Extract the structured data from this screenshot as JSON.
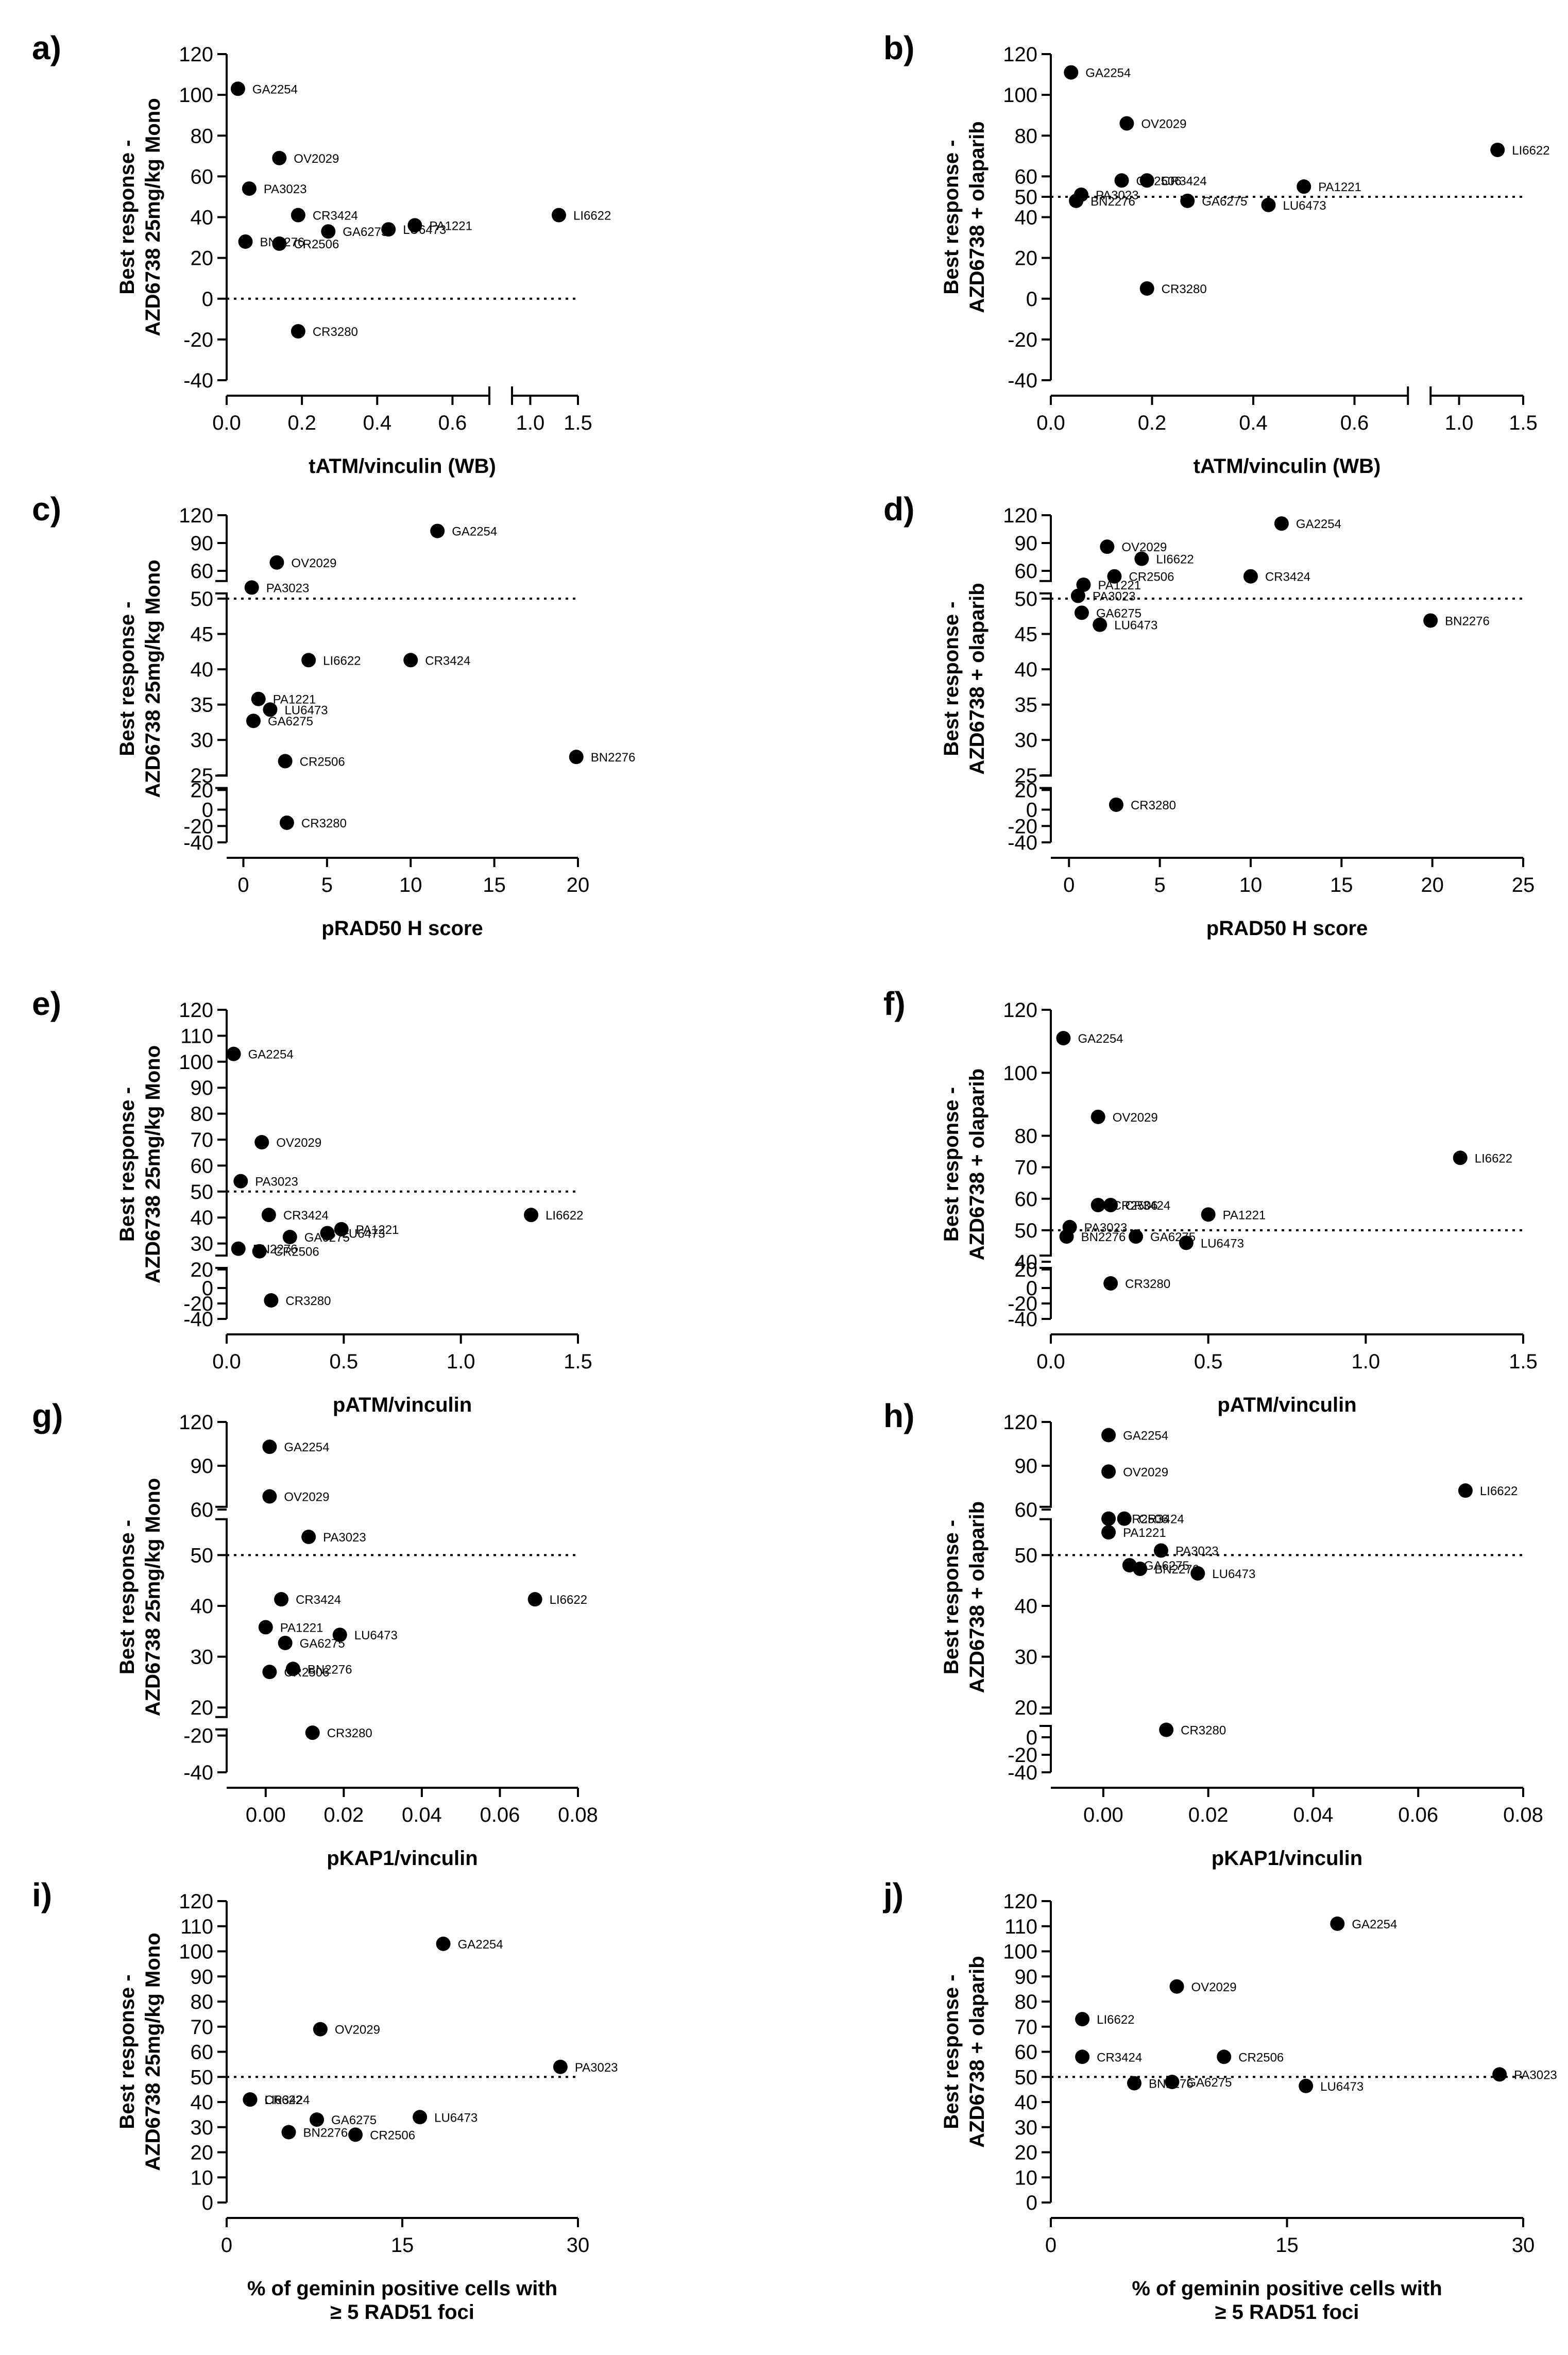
{
  "panels": [
    {
      "id": "a",
      "label": "a)",
      "xlabel": "tATM/vinculin (WB)",
      "ylabel": [
        "Best response -",
        "AZD6738 25mg/kg Mono"
      ]
    },
    {
      "id": "b",
      "label": "b)",
      "xlabel": "tATM/vinculin (WB)",
      "ylabel": [
        "Best response -",
        "AZD6738 + olaparib"
      ]
    },
    {
      "id": "c",
      "label": "c)",
      "xlabel": "pRAD50 H score",
      "ylabel": [
        "Best response -",
        "AZD6738 25mg/kg Mono"
      ]
    },
    {
      "id": "d",
      "label": "d)",
      "xlabel": "pRAD50 H score",
      "ylabel": [
        "Best response -",
        "AZD6738 + olaparib"
      ]
    },
    {
      "id": "e",
      "label": "e)",
      "xlabel": "pATM/vinculin",
      "ylabel": [
        "Best response -",
        "AZD6738 25mg/kg Mono"
      ]
    },
    {
      "id": "f",
      "label": "f)",
      "xlabel": "pATM/vinculin",
      "ylabel": [
        "Best response -",
        "AZD6738 + olaparib"
      ]
    },
    {
      "id": "g",
      "label": "g)",
      "xlabel": "pKAP1/vinculin",
      "ylabel": [
        "Best response -",
        "AZD6738 25mg/kg Mono"
      ]
    },
    {
      "id": "h",
      "label": "h)",
      "xlabel": "pKAP1/vinculin",
      "ylabel": [
        "Best response -",
        "AZD6738 + olaparib"
      ]
    },
    {
      "id": "i",
      "label": "i)",
      "xlabel": [
        "% of geminin positive cells with",
        "≥ 5 RAD51 foci"
      ],
      "ylabel": [
        "Best response -",
        "AZD6738 25mg/kg Mono"
      ]
    },
    {
      "id": "j",
      "label": "j)",
      "xlabel": [
        "% of geminin positive cells with",
        "≥ 5 RAD51 foci"
      ],
      "ylabel": [
        "Best response -",
        "AZD6738 + olaparib"
      ]
    }
  ],
  "chart_data": [
    {
      "panel": "a",
      "type": "scatter",
      "xlabel": "tATM/vinculin (WB)",
      "ylabel": "Best response - AZD6738 25mg/kg Mono",
      "xticks": [
        "0.0",
        "0.2",
        "0.4",
        "0.6",
        "1.0",
        "1.5"
      ],
      "yticks": [
        "-40",
        "-20",
        "0",
        "20",
        "40",
        "60",
        "80",
        "100",
        "120"
      ],
      "x_break": true,
      "y_break": false,
      "reference_line": 0,
      "points": [
        {
          "name": "GA2254",
          "x": 0.03,
          "y": 103
        },
        {
          "name": "OV2029",
          "x": 0.14,
          "y": 69
        },
        {
          "name": "PA3023",
          "x": 0.06,
          "y": 54
        },
        {
          "name": "CR3424",
          "x": 0.19,
          "y": 41
        },
        {
          "name": "LU6473",
          "x": 0.43,
          "y": 34
        },
        {
          "name": "PA1221",
          "x": 0.5,
          "y": 36
        },
        {
          "name": "LI6622",
          "x": 1.3,
          "y": 41
        },
        {
          "name": "BN2276",
          "x": 0.05,
          "y": 28
        },
        {
          "name": "CR2506",
          "x": 0.14,
          "y": 27
        },
        {
          "name": "GA6275",
          "x": 0.27,
          "y": 33
        },
        {
          "name": "CR3280",
          "x": 0.19,
          "y": -16
        }
      ]
    },
    {
      "panel": "b",
      "type": "scatter",
      "xlabel": "tATM/vinculin (WB)",
      "ylabel": "Best response - AZD6738 + olaparib",
      "xticks": [
        "0.0",
        "0.2",
        "0.4",
        "0.6",
        "1.0",
        "1.5"
      ],
      "yticks": [
        "-40",
        "-20",
        "0",
        "20",
        "40",
        "50",
        "60",
        "80",
        "100",
        "120"
      ],
      "x_break": true,
      "y_break": false,
      "reference_line": 50,
      "points": [
        {
          "name": "GA2254",
          "x": 0.04,
          "y": 111
        },
        {
          "name": "OV2029",
          "x": 0.15,
          "y": 86
        },
        {
          "name": "CR2506",
          "x": 0.14,
          "y": 58
        },
        {
          "name": "CR3424",
          "x": 0.19,
          "y": 58
        },
        {
          "name": "PA3023",
          "x": 0.06,
          "y": 51
        },
        {
          "name": "BN2276",
          "x": 0.05,
          "y": 48
        },
        {
          "name": "GA6275",
          "x": 0.27,
          "y": 48
        },
        {
          "name": "LU6473",
          "x": 0.43,
          "y": 46
        },
        {
          "name": "PA1221",
          "x": 0.5,
          "y": 55
        },
        {
          "name": "LI6622",
          "x": 1.3,
          "y": 73
        },
        {
          "name": "CR3280",
          "x": 0.19,
          "y": 5
        }
      ]
    },
    {
      "panel": "c",
      "type": "scatter",
      "xlabel": "pRAD50 H score",
      "ylabel": "Best response - AZD6738 25mg/kg Mono",
      "xticks": [
        "0",
        "5",
        "10",
        "15",
        "20"
      ],
      "yticks": [
        "-40",
        "-20",
        "0",
        "20",
        "25",
        "30",
        "35",
        "40",
        "45",
        "50",
        "60",
        "90",
        "120"
      ],
      "x_break": false,
      "y_break": true,
      "reference_line": 50,
      "points": [
        {
          "name": "GA2254",
          "x": 11.6,
          "y": 103
        },
        {
          "name": "OV2029",
          "x": 2,
          "y": 69
        },
        {
          "name": "PA3023",
          "x": 0.5,
          "y": 54
        },
        {
          "name": "LI6622",
          "x": 3.9,
          "y": 41.3
        },
        {
          "name": "CR3424",
          "x": 10,
          "y": 41.3
        },
        {
          "name": "PA1221",
          "x": 0.9,
          "y": 35.8
        },
        {
          "name": "LU6473",
          "x": 1.6,
          "y": 34.3
        },
        {
          "name": "GA6275",
          "x": 0.6,
          "y": 32.7
        },
        {
          "name": "CR2506",
          "x": 2.5,
          "y": 27
        },
        {
          "name": "BN2276",
          "x": 19.9,
          "y": 27.6
        },
        {
          "name": "CR3280",
          "x": 2.6,
          "y": -16
        }
      ]
    },
    {
      "panel": "d",
      "type": "scatter",
      "xlabel": "pRAD50 H score",
      "ylabel": "Best response - AZD6738 + olaparib",
      "xticks": [
        "0",
        "5",
        "10",
        "15",
        "20",
        "25"
      ],
      "yticks": [
        "-40",
        "-20",
        "0",
        "20",
        "25",
        "30",
        "35",
        "40",
        "45",
        "50",
        "60",
        "90",
        "120"
      ],
      "x_break": false,
      "y_break": true,
      "reference_line": 50,
      "points": [
        {
          "name": "GA2254",
          "x": 11.7,
          "y": 111
        },
        {
          "name": "OV2029",
          "x": 2.1,
          "y": 86
        },
        {
          "name": "PA3023",
          "x": 0.5,
          "y": 51
        },
        {
          "name": "PA1221",
          "x": 0.8,
          "y": 55
        },
        {
          "name": "LI6622",
          "x": 4,
          "y": 73
        },
        {
          "name": "CR2506",
          "x": 2.5,
          "y": 58
        },
        {
          "name": "CR3424",
          "x": 10,
          "y": 58
        },
        {
          "name": "GA6275",
          "x": 0.7,
          "y": 48
        },
        {
          "name": "LU6473",
          "x": 1.7,
          "y": 46.3
        },
        {
          "name": "BN2276",
          "x": 19.9,
          "y": 46.9
        },
        {
          "name": "CR3280",
          "x": 2.6,
          "y": 5
        }
      ]
    },
    {
      "panel": "e",
      "type": "scatter",
      "xlabel": "pATM/vinculin",
      "ylabel": "Best response - AZD6738 25mg/kg Mono",
      "xticks": [
        "0.0",
        "0.5",
        "1.0",
        "1.5"
      ],
      "yticks": [
        "-40",
        "-20",
        "0",
        "20",
        "30",
        "40",
        "50",
        "60",
        "70",
        "80",
        "90",
        "100",
        "110",
        "120"
      ],
      "x_break": false,
      "y_break": true,
      "reference_line": 50,
      "points": [
        {
          "name": "GA2254",
          "x": 0.03,
          "y": 103
        },
        {
          "name": "OV2029",
          "x": 0.15,
          "y": 69
        },
        {
          "name": "PA3023",
          "x": 0.06,
          "y": 54
        },
        {
          "name": "CR3424",
          "x": 0.18,
          "y": 41
        },
        {
          "name": "LU6473",
          "x": 0.43,
          "y": 34
        },
        {
          "name": "PA1221",
          "x": 0.49,
          "y": 35.5
        },
        {
          "name": "LI6622",
          "x": 1.3,
          "y": 41
        },
        {
          "name": "BN2276",
          "x": 0.05,
          "y": 28
        },
        {
          "name": "CR2506",
          "x": 0.14,
          "y": 27
        },
        {
          "name": "GA6275",
          "x": 0.27,
          "y": 32.5
        },
        {
          "name": "CR3280",
          "x": 0.19,
          "y": -16
        }
      ]
    },
    {
      "panel": "f",
      "type": "scatter",
      "xlabel": "pATM/vinculin",
      "ylabel": "Best response - AZD6738 + olaparib",
      "xticks": [
        "0.0",
        "0.5",
        "1.0",
        "1.5"
      ],
      "yticks": [
        "-40",
        "-20",
        "0",
        "20",
        "40",
        "50",
        "60",
        "70",
        "80",
        "100",
        "120"
      ],
      "x_break": false,
      "y_break": true,
      "reference_line": 50,
      "points": [
        {
          "name": "GA2254",
          "x": 0.04,
          "y": 111
        },
        {
          "name": "OV2029",
          "x": 0.15,
          "y": 86
        },
        {
          "name": "CR2506",
          "x": 0.15,
          "y": 58
        },
        {
          "name": "CR3424",
          "x": 0.19,
          "y": 58
        },
        {
          "name": "PA3023",
          "x": 0.06,
          "y": 51
        },
        {
          "name": "BN2276",
          "x": 0.05,
          "y": 48
        },
        {
          "name": "GA6275",
          "x": 0.27,
          "y": 48
        },
        {
          "name": "LU6473",
          "x": 0.43,
          "y": 46
        },
        {
          "name": "PA1221",
          "x": 0.5,
          "y": 55
        },
        {
          "name": "LI6622",
          "x": 1.3,
          "y": 73
        },
        {
          "name": "CR3280",
          "x": 0.19,
          "y": 5
        }
      ]
    },
    {
      "panel": "g",
      "type": "scatter",
      "xlabel": "pKAP1/vinculin",
      "ylabel": "Best response - AZD6738 25mg/kg Mono",
      "xticks": [
        "0.00",
        "0.02",
        "0.04",
        "0.06",
        "0.08"
      ],
      "yticks": [
        "-40",
        "-20",
        "20",
        "30",
        "40",
        "50",
        "60",
        "90",
        "120"
      ],
      "x_break": false,
      "y_break": true,
      "reference_line": 50,
      "points": [
        {
          "name": "GA2254",
          "x": 0.001,
          "y": 103
        },
        {
          "name": "OV2029",
          "x": 0.001,
          "y": 69
        },
        {
          "name": "PA3023",
          "x": 0.011,
          "y": 54
        },
        {
          "name": "CR3424",
          "x": 0.004,
          "y": 41.3
        },
        {
          "name": "LI6622",
          "x": 0.069,
          "y": 41.3
        },
        {
          "name": "PA1221",
          "x": 0.0,
          "y": 35.8
        },
        {
          "name": "LU6473",
          "x": 0.019,
          "y": 34.3
        },
        {
          "name": "GA6275",
          "x": 0.005,
          "y": 32.7
        },
        {
          "name": "BN2276",
          "x": 0.007,
          "y": 27.6
        },
        {
          "name": "CR2506",
          "x": 0.001,
          "y": 27
        },
        {
          "name": "CR3280",
          "x": 0.012,
          "y": -16
        }
      ]
    },
    {
      "panel": "h",
      "type": "scatter",
      "xlabel": "pKAP1/vinculin",
      "ylabel": "Best response - AZD6738 + olaparib",
      "xticks": [
        "0.00",
        "0.02",
        "0.04",
        "0.06",
        "0.08"
      ],
      "yticks": [
        "-40",
        "-20",
        "0",
        "20",
        "30",
        "40",
        "50",
        "60",
        "90",
        "120"
      ],
      "x_break": false,
      "y_break": true,
      "reference_line": 50,
      "points": [
        {
          "name": "GA2254",
          "x": 0.001,
          "y": 111
        },
        {
          "name": "OV2029",
          "x": 0.001,
          "y": 86
        },
        {
          "name": "LI6622",
          "x": 0.069,
          "y": 73
        },
        {
          "name": "CR2506",
          "x": 0.001,
          "y": 58
        },
        {
          "name": "CR3424",
          "x": 0.004,
          "y": 58
        },
        {
          "name": "PA1221",
          "x": 0.001,
          "y": 55
        },
        {
          "name": "PA3023",
          "x": 0.011,
          "y": 51
        },
        {
          "name": "GA6275",
          "x": 0.005,
          "y": 48
        },
        {
          "name": "BN2276",
          "x": 0.007,
          "y": 47.3
        },
        {
          "name": "LU6473",
          "x": 0.018,
          "y": 46.4
        },
        {
          "name": "CR3280",
          "x": 0.012,
          "y": 5
        }
      ]
    },
    {
      "panel": "i",
      "type": "scatter",
      "xlabel": "% of geminin positive cells with ≥ 5 RAD51 foci",
      "ylabel": "Best response - AZD6738 25mg/kg Mono",
      "xticks": [
        "0",
        "15",
        "30"
      ],
      "yticks": [
        "0",
        "10",
        "20",
        "30",
        "40",
        "50",
        "60",
        "70",
        "80",
        "90",
        "100",
        "110",
        "120"
      ],
      "x_break": false,
      "y_break": false,
      "reference_line": 50,
      "points": [
        {
          "name": "GA2254",
          "x": 18.5,
          "y": 103
        },
        {
          "name": "OV2029",
          "x": 8,
          "y": 69
        },
        {
          "name": "PA3023",
          "x": 28.5,
          "y": 54
        },
        {
          "name": "LI6622",
          "x": 2,
          "y": 41
        },
        {
          "name": "CR3424",
          "x": 2,
          "y": 41
        },
        {
          "name": "GA6275",
          "x": 7.7,
          "y": 33
        },
        {
          "name": "LU6473",
          "x": 16.5,
          "y": 34
        },
        {
          "name": "BN2276",
          "x": 5.3,
          "y": 28
        },
        {
          "name": "CR2506",
          "x": 11,
          "y": 27
        }
      ]
    },
    {
      "panel": "j",
      "type": "scatter",
      "xlabel": "% of geminin positive cells with ≥ 5 RAD51 foci",
      "ylabel": "Best response - AZD6738 + olaparib",
      "xticks": [
        "0",
        "15",
        "30"
      ],
      "yticks": [
        "0",
        "10",
        "20",
        "30",
        "40",
        "50",
        "60",
        "70",
        "80",
        "90",
        "100",
        "110",
        "120"
      ],
      "x_break": false,
      "y_break": false,
      "reference_line": 50,
      "points": [
        {
          "name": "GA2254",
          "x": 18.2,
          "y": 111
        },
        {
          "name": "OV2029",
          "x": 8,
          "y": 86
        },
        {
          "name": "LI6622",
          "x": 2,
          "y": 73
        },
        {
          "name": "CR3424",
          "x": 2,
          "y": 58
        },
        {
          "name": "CR2506",
          "x": 11,
          "y": 58
        },
        {
          "name": "BN2276",
          "x": 5.3,
          "y": 47.5
        },
        {
          "name": "GA6275",
          "x": 7.7,
          "y": 48
        },
        {
          "name": "LU6473",
          "x": 16.2,
          "y": 46.4
        },
        {
          "name": "PA3023",
          "x": 28.5,
          "y": 51
        }
      ]
    }
  ]
}
